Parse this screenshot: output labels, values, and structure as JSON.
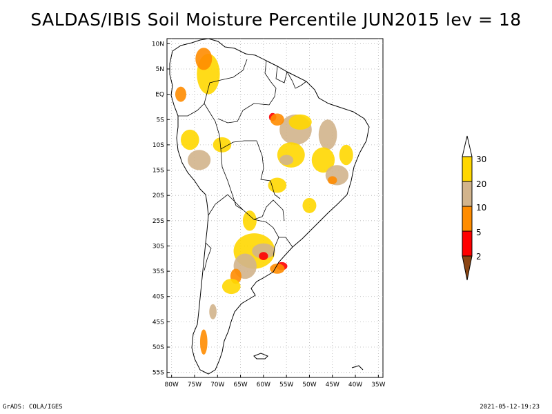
{
  "title": "SALDAS/IBIS Soil Moisture Percentile JUN2015 lev = 18",
  "map": {
    "lat_labels": [
      "10N",
      "5N",
      "EQ",
      "5S",
      "10S",
      "15S",
      "20S",
      "25S",
      "30S",
      "35S",
      "40S",
      "45S",
      "50S",
      "55S"
    ],
    "lon_labels": [
      "80W",
      "75W",
      "70W",
      "65W",
      "60W",
      "55W",
      "50W",
      "45W",
      "40W",
      "35W"
    ],
    "lat_range": [
      -56,
      11
    ],
    "lon_range": [
      -81,
      -34
    ],
    "data_colors": {
      "p0_2": "#8b4513",
      "p2_5": "#ff0000",
      "p5_10": "#ff8c00",
      "p10_20": "#d2b48c",
      "p20_30": "#ffd700"
    }
  },
  "legend": {
    "labels": [
      "2",
      "5",
      "10",
      "20",
      "30"
    ],
    "bands": [
      {
        "range": "<2",
        "color": "#8b4513"
      },
      {
        "range": "2-5",
        "color": "#ff0000"
      },
      {
        "range": "5-10",
        "color": "#ff8c00"
      },
      {
        "range": "10-20",
        "color": "#d2b48c"
      },
      {
        "range": "20-30",
        "color": "#ffd700"
      },
      {
        "range": ">30",
        "color": "#ffffff"
      }
    ]
  },
  "footer": {
    "left": "GrADS: COLA/IGES",
    "right": "2021-05-12-19:23"
  }
}
